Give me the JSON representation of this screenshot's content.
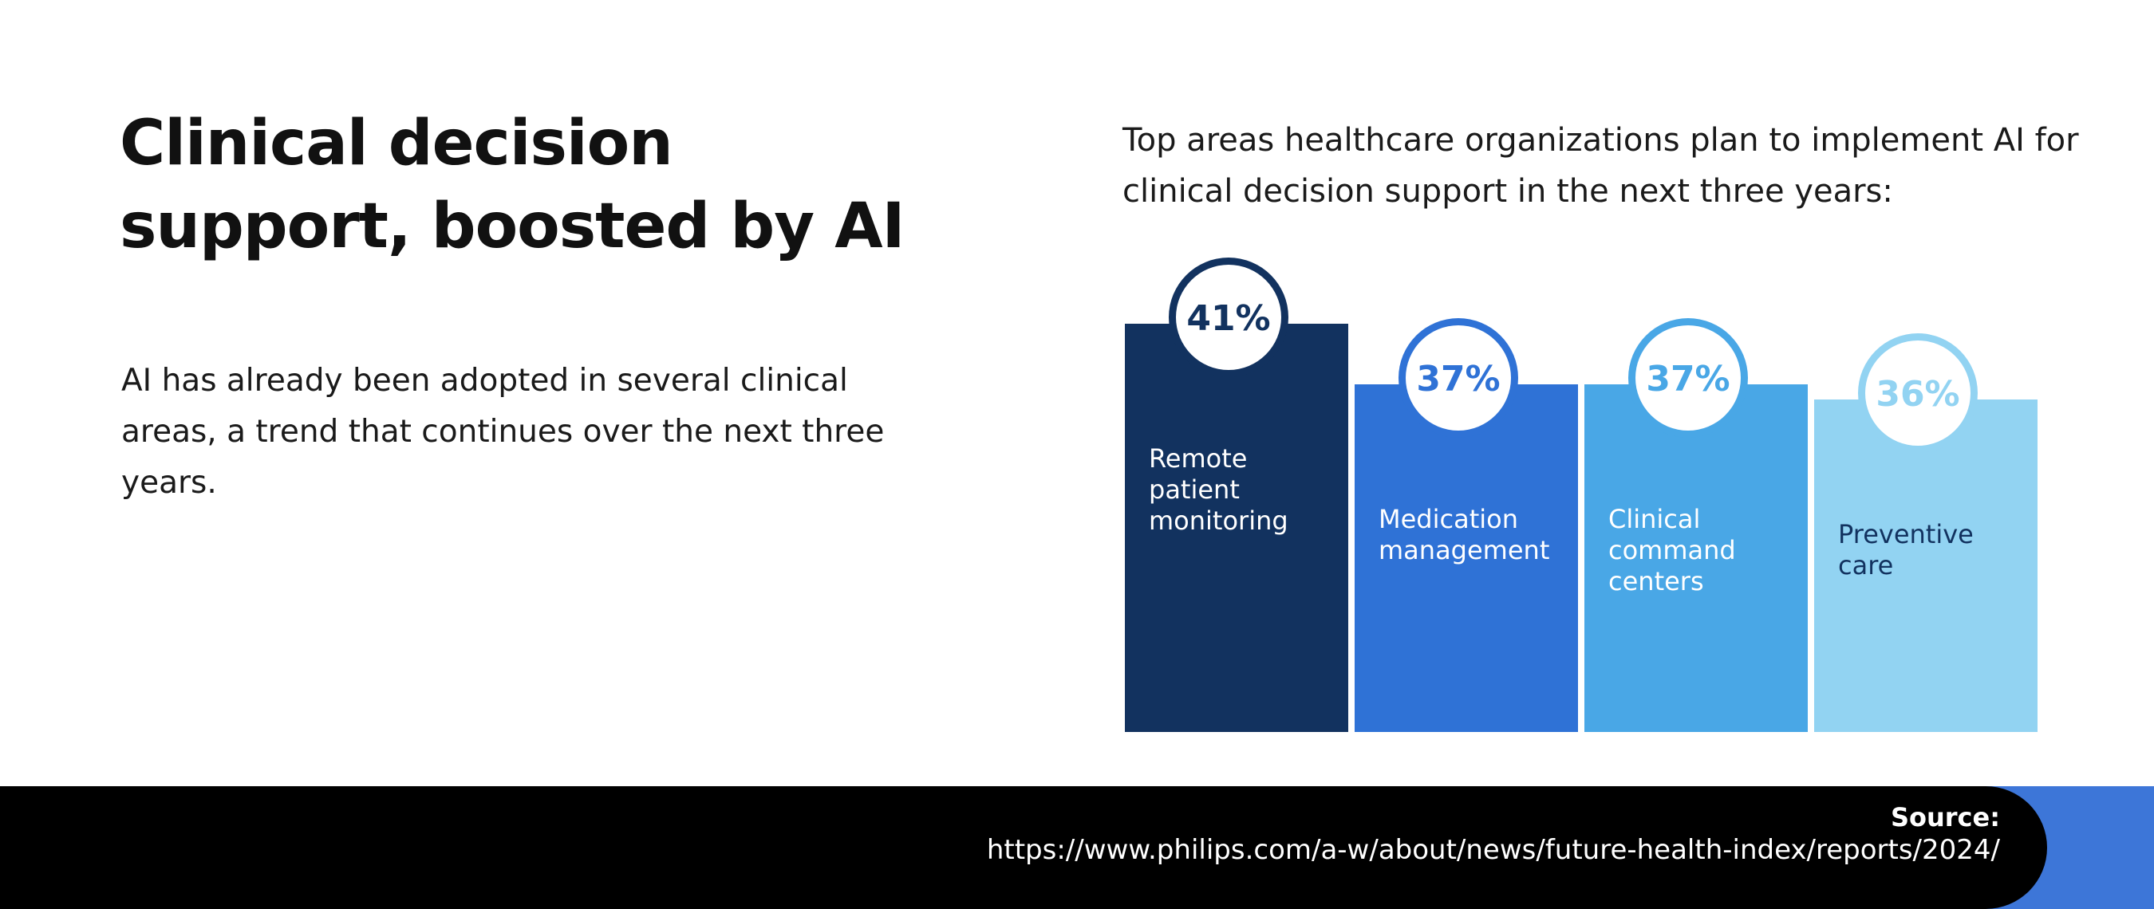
{
  "headline": "Clinical decision support, boosted by AI",
  "intro": "AI has already been adopted in several clinical areas, a trend that continues over the next three years.",
  "chart_subtitle": "Top areas healthcare organizations plan to implement AI for clinical decision support in the next three years:",
  "colors": {
    "bar_1": "#12325f",
    "bar_2": "#2f72d6",
    "bar_3": "#49a7e6",
    "bar_4": "#92d3f2",
    "footer_accent": "#3d76d8"
  },
  "chart_data": {
    "type": "bar",
    "title": "Top areas healthcare organizations plan to implement AI for clinical decision support in the next three years:",
    "xlabel": "",
    "ylabel": "",
    "ylim": [
      0,
      41
    ],
    "categories": [
      [
        "Remote",
        "patient",
        "monitoring"
      ],
      [
        "Medication",
        "management"
      ],
      [
        "Clinical",
        "command",
        "centers"
      ],
      [
        "Preventive",
        "care"
      ]
    ],
    "values": [
      41,
      37,
      37,
      36
    ],
    "value_labels": [
      "41%",
      "37%",
      "37%",
      "36%"
    ],
    "bar_colors": [
      "#12325f",
      "#2f72d6",
      "#49a7e6",
      "#92d3f2"
    ],
    "label_colors": [
      "#ffffff",
      "#ffffff",
      "#ffffff",
      "#12325f"
    ],
    "badge_text_colors": [
      "#12325f",
      "#2f72d6",
      "#49a7e6",
      "#92d3f2"
    ]
  },
  "footer": {
    "source_label": "Source:",
    "source_url": "https://www.philips.com/a-w/about/news/future-health-index/reports/2024/"
  }
}
